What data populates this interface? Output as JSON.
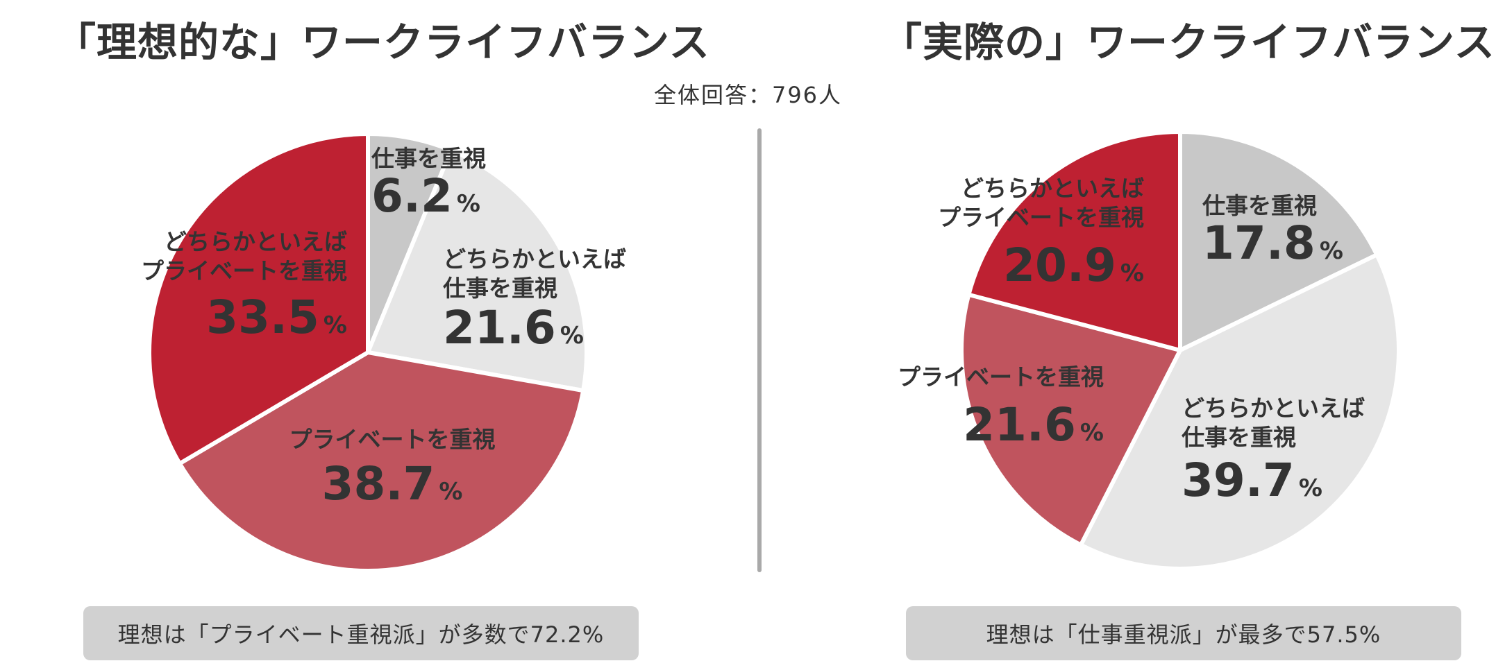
{
  "subtitle": "全体回答：796人",
  "chart_data": [
    {
      "type": "pie",
      "title": "「理想的な」ワークライフバランス",
      "caption": "理想は「プライベート重視派」が多数で72.2%",
      "slices": [
        {
          "label": [
            "仕事を重視"
          ],
          "value": 6.2,
          "value_text": "6.2",
          "color": "#c8c8c8"
        },
        {
          "label": [
            "どちらかといえば",
            "仕事を重視"
          ],
          "value": 21.6,
          "value_text": "21.6",
          "color": "#e6e6e6"
        },
        {
          "label": [
            "プライベートを重視"
          ],
          "value": 38.7,
          "value_text": "38.7",
          "color": "#c0545e"
        },
        {
          "label": [
            "どちらかといえば",
            "プライベートを重視"
          ],
          "value": 33.5,
          "value_text": "33.5",
          "color": "#be2132"
        }
      ]
    },
    {
      "type": "pie",
      "title": "「実際の」ワークライフバランス",
      "caption": "理想は「仕事重視派」が最多で57.5%",
      "slices": [
        {
          "label": [
            "仕事を重視"
          ],
          "value": 17.8,
          "value_text": "17.8",
          "color": "#c8c8c8"
        },
        {
          "label": [
            "どちらかといえば",
            "仕事を重視"
          ],
          "value": 39.7,
          "value_text": "39.7",
          "color": "#e6e6e6"
        },
        {
          "label": [
            "プライベートを重視"
          ],
          "value": 21.6,
          "value_text": "21.6",
          "color": "#c0545e"
        },
        {
          "label": [
            "どちらかといえば",
            "プライベートを重視"
          ],
          "value": 20.9,
          "value_text": "20.9",
          "color": "#be2132"
        }
      ]
    }
  ]
}
